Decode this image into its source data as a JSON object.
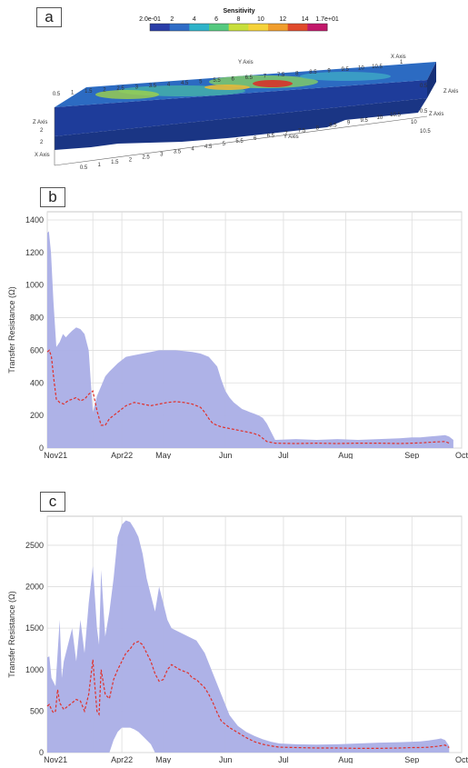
{
  "panel_a": {
    "tag": "a",
    "colorbar": {
      "title": "Sensitivity",
      "ticks": [
        "2.0e-01",
        "2",
        "4",
        "6",
        "8",
        "10",
        "12",
        "14",
        "1.7e+01"
      ],
      "colors": [
        "#2b3ea8",
        "#2f6cc6",
        "#2fb3c9",
        "#55c97f",
        "#c7de3c",
        "#f5d23a",
        "#f09d2d",
        "#e04a2c",
        "#c2186a"
      ]
    },
    "top_x_ticks": [
      "0.5",
      "1",
      "1.5",
      "2",
      "2.5",
      "3",
      "3.5",
      "4",
      "4.5",
      "5",
      "5.5",
      "6",
      "6.5",
      "7",
      "7.5",
      "8",
      "8.5",
      "9",
      "9.5",
      "10",
      "10.5"
    ],
    "bottom_x_ticks": [
      "0.5",
      "1",
      "1.5",
      "2",
      "2.5",
      "3",
      "3.5",
      "4",
      "4.5",
      "5",
      "5.5",
      "6",
      "6.5",
      "7",
      "7.5",
      "8",
      "8.5",
      "9",
      "9.5",
      "10",
      "10.5"
    ],
    "axis_labels": {
      "y_top": "Y Axis",
      "x_top": "X Axis",
      "z_right": "Z Axis",
      "y_front": "Y Axis",
      "z_left": "Z Axis",
      "x_left": "X Axis"
    },
    "small_labels": {
      "z_right_top": "0.5",
      "z_right_mid": "0.5",
      "z_left_a": "2",
      "z_left_b": "2",
      "right_a": "10",
      "right_b": "10.5",
      "x_top_a": "1"
    }
  },
  "chart_data": [
    {
      "panel": "b",
      "type": "area",
      "ylabel": "Transfer Resistance (Ω)",
      "ylim": [
        0,
        1450
      ],
      "yticks": [
        0,
        200,
        400,
        600,
        800,
        1000,
        1200,
        1400
      ],
      "xlim": [
        0,
        100
      ],
      "xticks": [
        {
          "label": "Nov21",
          "x": 2
        },
        {
          "label": "Apr22",
          "x": 18
        },
        {
          "label": "May",
          "x": 28
        },
        {
          "label": "Jun",
          "x": 43
        },
        {
          "label": "Jul",
          "x": 57
        },
        {
          "label": "Aug",
          "x": 72
        },
        {
          "label": "Sep",
          "x": 88
        },
        {
          "label": "Oct",
          "x": 100
        }
      ],
      "vgrid": [
        0,
        11,
        18,
        28,
        43,
        57,
        72,
        88,
        100
      ],
      "grid": true,
      "series": [
        {
          "kind": "band",
          "color": "#aaaee6",
          "x": [
            0,
            0.4,
            0.9,
            1.5,
            2.2,
            3,
            3.8,
            4.5,
            5.2,
            6,
            7,
            8,
            9,
            10,
            11,
            12,
            13,
            14,
            15,
            17,
            19,
            21,
            23,
            25,
            27,
            29,
            31,
            33,
            35,
            37,
            39,
            41,
            42,
            43,
            44,
            45,
            46,
            47,
            48,
            49,
            50,
            51,
            52,
            53,
            55,
            60,
            65,
            70,
            75,
            80,
            85,
            88,
            90,
            92,
            94,
            96,
            97,
            98
          ],
          "upper": [
            1320,
            1330,
            1200,
            900,
            620,
            650,
            700,
            680,
            700,
            720,
            740,
            730,
            700,
            600,
            220,
            320,
            380,
            440,
            470,
            520,
            560,
            570,
            580,
            590,
            600,
            600,
            600,
            595,
            590,
            580,
            560,
            500,
            420,
            350,
            310,
            280,
            260,
            240,
            230,
            220,
            210,
            200,
            185,
            150,
            50,
            55,
            50,
            55,
            50,
            55,
            60,
            65,
            65,
            70,
            75,
            80,
            70,
            50
          ],
          "lower": [
            0,
            0,
            0,
            0,
            0,
            0,
            0,
            0,
            0,
            0,
            0,
            0,
            0,
            0,
            0,
            0,
            0,
            0,
            0,
            0,
            0,
            0,
            0,
            0,
            0,
            0,
            0,
            0,
            0,
            0,
            0,
            0,
            0,
            0,
            0,
            0,
            0,
            0,
            0,
            0,
            0,
            0,
            0,
            0,
            0,
            0,
            0,
            0,
            0,
            0,
            0,
            0,
            0,
            0,
            0,
            0,
            0,
            0
          ]
        },
        {
          "kind": "line",
          "color": "#e0302a",
          "dashed": true,
          "x": [
            0,
            0.5,
            1,
            1.6,
            2.2,
            3,
            4,
            5,
            6,
            7,
            8,
            9,
            10,
            11,
            12,
            13,
            14,
            15,
            17,
            19,
            21,
            23,
            25,
            27,
            29,
            31,
            33,
            35,
            37,
            38,
            39,
            40,
            41,
            42,
            43,
            44,
            45,
            46,
            47,
            48,
            49,
            50,
            51,
            52,
            53,
            55,
            60,
            65,
            70,
            75,
            80,
            85,
            88,
            90,
            92,
            94,
            96,
            97
          ],
          "values": [
            590,
            600,
            560,
            420,
            300,
            280,
            270,
            290,
            300,
            310,
            290,
            300,
            330,
            350,
            230,
            140,
            140,
            180,
            220,
            260,
            280,
            270,
            260,
            270,
            280,
            285,
            280,
            270,
            250,
            220,
            180,
            150,
            140,
            130,
            125,
            120,
            115,
            110,
            105,
            100,
            95,
            88,
            80,
            60,
            40,
            30,
            28,
            30,
            28,
            30,
            30,
            28,
            30,
            32,
            35,
            38,
            40,
            30
          ]
        }
      ]
    },
    {
      "panel": "c",
      "type": "area",
      "ylabel": "Transfer Resistance (Ω)",
      "ylim": [
        0,
        2850
      ],
      "yticks": [
        0,
        500,
        1000,
        1500,
        2000,
        2500
      ],
      "xlim": [
        0,
        100
      ],
      "xticks": [
        {
          "label": "Nov21",
          "x": 2
        },
        {
          "label": "Apr22",
          "x": 18
        },
        {
          "label": "May",
          "x": 28
        },
        {
          "label": "Jun",
          "x": 43
        },
        {
          "label": "Jul",
          "x": 57
        },
        {
          "label": "Aug",
          "x": 72
        },
        {
          "label": "Sep",
          "x": 88
        },
        {
          "label": "Oct",
          "x": 100
        }
      ],
      "vgrid": [
        0,
        11,
        18,
        28,
        43,
        57,
        72,
        88,
        100
      ],
      "grid": true,
      "series": [
        {
          "kind": "band",
          "color": "#aaaee6",
          "x": [
            0,
            0.5,
            1,
            2,
            3,
            3.5,
            4,
            5,
            6,
            7,
            8,
            9,
            10,
            11,
            12,
            12.5,
            13,
            14,
            15,
            16,
            17,
            18,
            19,
            20,
            21,
            22,
            23,
            24,
            25,
            26,
            27,
            28,
            29,
            30,
            32,
            34,
            36,
            38,
            40,
            42,
            44,
            46,
            48,
            50,
            52,
            54,
            56,
            60,
            65,
            70,
            75,
            80,
            85,
            88,
            90,
            92,
            94,
            95,
            96,
            97
          ],
          "upper": [
            1150,
            1160,
            900,
            800,
            1600,
            900,
            1100,
            1300,
            1500,
            1100,
            1600,
            1200,
            1800,
            2250,
            1500,
            1300,
            2200,
            1400,
            1700,
            2100,
            2600,
            2750,
            2800,
            2780,
            2700,
            2600,
            2400,
            2100,
            1900,
            1700,
            2000,
            1800,
            1600,
            1500,
            1450,
            1400,
            1350,
            1200,
            950,
            700,
            450,
            320,
            250,
            200,
            160,
            130,
            110,
            100,
            95,
            100,
            110,
            120,
            125,
            130,
            135,
            145,
            160,
            170,
            150,
            80
          ],
          "lower": [
            0,
            0,
            0,
            0,
            0,
            0,
            0,
            0,
            0,
            0,
            0,
            0,
            0,
            0,
            0,
            0,
            0,
            0,
            0,
            150,
            250,
            300,
            300,
            300,
            280,
            250,
            200,
            150,
            100,
            0,
            0,
            0,
            0,
            0,
            0,
            0,
            0,
            0,
            0,
            0,
            0,
            0,
            0,
            0,
            0,
            0,
            0,
            0,
            0,
            0,
            0,
            0,
            0,
            0,
            0,
            0,
            0,
            0,
            0,
            0
          ]
        },
        {
          "kind": "line",
          "color": "#e0302a",
          "dashed": true,
          "x": [
            0,
            0.5,
            1,
            1.5,
            2,
            2.5,
            3,
            4,
            5,
            6,
            7,
            8,
            9,
            10,
            11,
            11.5,
            12,
            12.5,
            13,
            14,
            15,
            16,
            17,
            18,
            19,
            20,
            21,
            22,
            23,
            24,
            25,
            26,
            27,
            28,
            29,
            30,
            32,
            34,
            35,
            36,
            37,
            38,
            39,
            40,
            41,
            42,
            44,
            46,
            48,
            50,
            52,
            54,
            56,
            60,
            65,
            70,
            75,
            80,
            85,
            88,
            90,
            92,
            94,
            96,
            97
          ],
          "values": [
            560,
            580,
            520,
            480,
            500,
            760,
            600,
            520,
            560,
            600,
            640,
            620,
            500,
            700,
            1120,
            800,
            500,
            460,
            1000,
            700,
            650,
            880,
            1000,
            1100,
            1200,
            1250,
            1320,
            1340,
            1300,
            1200,
            1100,
            950,
            860,
            880,
            1000,
            1060,
            1000,
            960,
            900,
            880,
            830,
            780,
            700,
            600,
            480,
            380,
            300,
            240,
            180,
            130,
            100,
            80,
            65,
            60,
            55,
            55,
            50,
            50,
            55,
            60,
            60,
            65,
            75,
            90,
            60
          ]
        }
      ]
    }
  ]
}
